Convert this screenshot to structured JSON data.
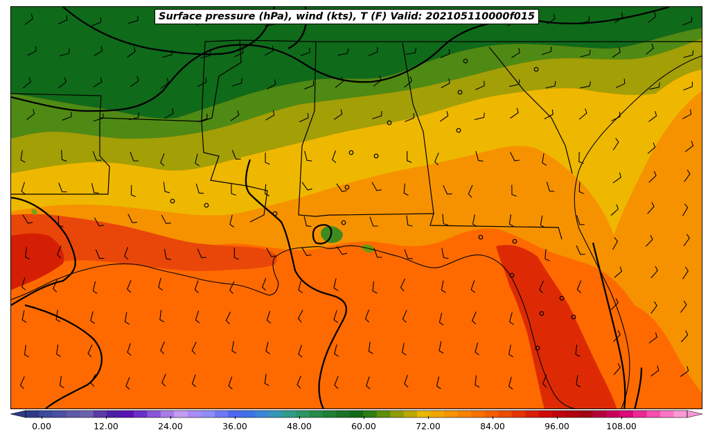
{
  "title": "Surface pressure (hPa), wind (kts), T (F) Valid: 202105110000f015",
  "colorbar": {
    "tick_labels": [
      "0.00",
      "12.00",
      "24.00",
      "36.00",
      "48.00",
      "60.00",
      "72.00",
      "84.00",
      "96.00",
      "108.00"
    ],
    "tick_values": [
      0,
      12,
      24,
      36,
      48,
      60,
      72,
      84,
      96,
      108
    ],
    "min": -4,
    "max": 125,
    "step": 3,
    "colors": [
      "#2e3a87",
      "#3b4a9a",
      "#4b4fa3",
      "#5e5aa8",
      "#6a62ad",
      "#5a3aa8",
      "#4c1fa5",
      "#5a12b5",
      "#6a2fc7",
      "#8a55d8",
      "#a97be8",
      "#c39df2",
      "#aa8cf7",
      "#8f8cf8",
      "#6f79f3",
      "#4e66f0",
      "#3f72e6",
      "#3a86d8",
      "#3596b8",
      "#2f9e8a",
      "#2c9564",
      "#268a49",
      "#1f7f35",
      "#187426",
      "#116a18",
      "#2f7d12",
      "#5d8f0b",
      "#8e9c06",
      "#bca703",
      "#e7b800",
      "#f2a500",
      "#f59300",
      "#f78200",
      "#f87000",
      "#f35e00",
      "#ec4b00",
      "#e43500",
      "#da1f00",
      "#cf0a00",
      "#c00008",
      "#b0000e",
      "#a10016",
      "#b1003a",
      "#c8005a",
      "#dc0a7a",
      "#ec2a95",
      "#f64fae",
      "#fb74c4",
      "#fd99d6"
    ],
    "under_color": "#2e3a87",
    "over_color": "#fd99d6"
  }
}
